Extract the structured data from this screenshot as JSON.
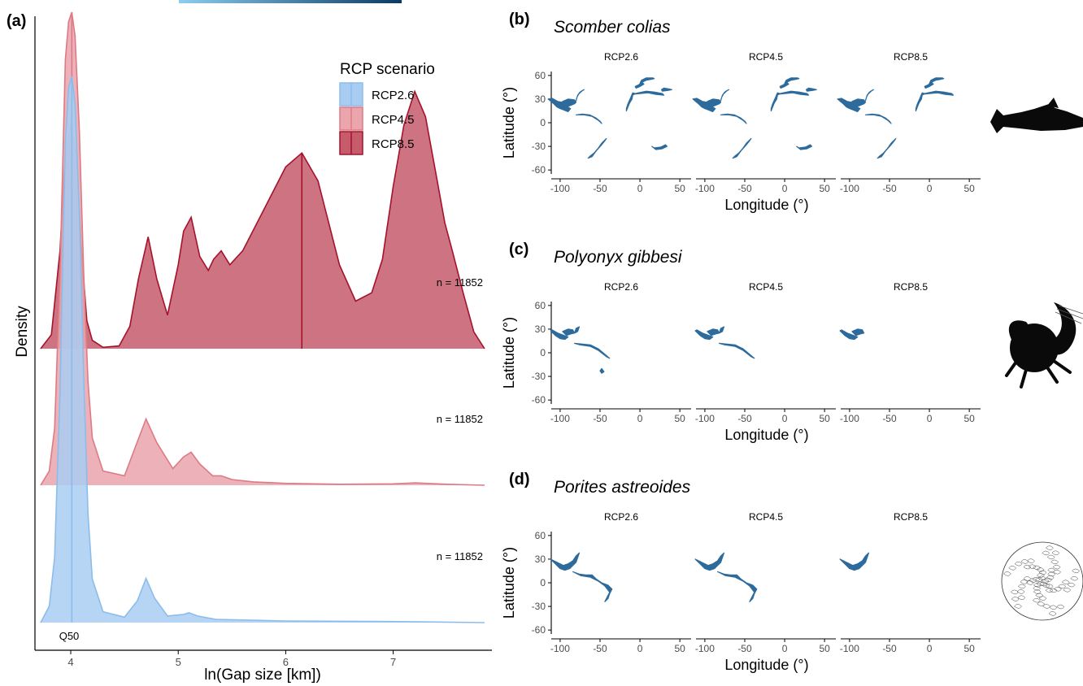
{
  "chart_data": [
    {
      "panel": "(a)",
      "type": "area",
      "xlabel": "ln(Gap size [km])",
      "ylabel": "Density",
      "xlim": [
        3.72,
        7.85
      ],
      "x_ticks": [
        4,
        5,
        6,
        7
      ],
      "legend": {
        "title": "RCP scenario",
        "position": "top-right",
        "entries": [
          "RCP2.6",
          "RCP4.5",
          "RCP8.5"
        ]
      },
      "quantile_label": "Q50",
      "series": [
        {
          "name": "RCP2.6",
          "color": "#a9cdf2",
          "stroke": "#8bbdea",
          "n_label": "n = 11852",
          "median": 4.01,
          "x": [
            3.72,
            3.8,
            3.85,
            3.9,
            3.95,
            3.98,
            4.01,
            4.04,
            4.08,
            4.12,
            4.16,
            4.2,
            4.3,
            4.5,
            4.62,
            4.7,
            4.78,
            4.9,
            5.05,
            5.1,
            5.18,
            5.35,
            6.0,
            7.0,
            7.85
          ],
          "density": [
            0.0,
            0.03,
            0.12,
            0.42,
            0.88,
            0.98,
            1.0,
            0.95,
            0.75,
            0.45,
            0.2,
            0.08,
            0.02,
            0.01,
            0.04,
            0.081,
            0.045,
            0.012,
            0.015,
            0.018,
            0.012,
            0.006,
            0.003,
            0.002,
            0.0
          ]
        },
        {
          "name": "RCP4.5",
          "color": "#eaa5ad",
          "stroke": "#de7a84",
          "n_label": "n = 11852",
          "median": 4.01,
          "x": [
            3.72,
            3.8,
            3.85,
            3.9,
            3.95,
            3.98,
            4.01,
            4.04,
            4.08,
            4.12,
            4.16,
            4.2,
            4.3,
            4.5,
            4.6,
            4.7,
            4.8,
            4.95,
            5.05,
            5.12,
            5.2,
            5.32,
            5.4,
            5.5,
            5.7,
            6.0,
            6.5,
            7.0,
            7.2,
            7.5,
            7.85
          ],
          "density": [
            0.0,
            0.03,
            0.12,
            0.45,
            0.9,
            0.98,
            1.0,
            0.95,
            0.75,
            0.45,
            0.22,
            0.1,
            0.03,
            0.02,
            0.08,
            0.14,
            0.09,
            0.035,
            0.06,
            0.07,
            0.045,
            0.02,
            0.02,
            0.012,
            0.007,
            0.004,
            0.002,
            0.003,
            0.005,
            0.002,
            0.0
          ]
        },
        {
          "name": "RCP8.5",
          "color": "#c55b6b",
          "stroke": "#a5122c",
          "n_label": "n = 11852",
          "median": 6.15,
          "x": [
            3.72,
            3.82,
            3.9,
            3.95,
            4.0,
            4.05,
            4.1,
            4.15,
            4.2,
            4.3,
            4.45,
            4.55,
            4.63,
            4.72,
            4.8,
            4.9,
            5.0,
            5.05,
            5.12,
            5.2,
            5.28,
            5.33,
            5.4,
            5.48,
            5.6,
            5.8,
            6.0,
            6.15,
            6.3,
            6.5,
            6.65,
            6.8,
            6.9,
            7.0,
            7.1,
            7.2,
            7.3,
            7.4,
            7.48,
            7.55,
            7.65,
            7.75,
            7.85
          ],
          "density": [
            0.0,
            0.05,
            0.35,
            0.7,
            0.8,
            0.7,
            0.35,
            0.1,
            0.03,
            0.005,
            0.01,
            0.08,
            0.25,
            0.4,
            0.25,
            0.12,
            0.3,
            0.42,
            0.47,
            0.33,
            0.28,
            0.32,
            0.35,
            0.3,
            0.35,
            0.5,
            0.65,
            0.7,
            0.6,
            0.3,
            0.17,
            0.2,
            0.32,
            0.58,
            0.8,
            0.92,
            0.83,
            0.62,
            0.45,
            0.35,
            0.2,
            0.06,
            0.0
          ]
        }
      ]
    },
    {
      "panel": "(b)",
      "type": "map",
      "species": "Scomber colias",
      "facets": [
        "RCP2.6",
        "RCP4.5",
        "RCP8.5"
      ],
      "xlabel": "Longitude (°)",
      "ylabel": "Latitude (°)",
      "x_ticks": [
        -100,
        -50,
        0,
        50
      ],
      "y_ticks": [
        60,
        30,
        0,
        -30,
        -60
      ],
      "silhouette": "fish-silhouette"
    },
    {
      "panel": "(c)",
      "type": "map",
      "species": "Polyonyx gibbesi",
      "facets": [
        "RCP2.6",
        "RCP4.5",
        "RCP8.5"
      ],
      "xlabel": "Longitude (°)",
      "ylabel": "Latitude (°)",
      "x_ticks": [
        -100,
        -50,
        0,
        50
      ],
      "y_ticks": [
        60,
        30,
        0,
        -30,
        -60
      ],
      "silhouette": "crab-silhouette"
    },
    {
      "panel": "(d)",
      "type": "map",
      "species": "Porites astreoides",
      "facets": [
        "RCP2.6",
        "RCP4.5",
        "RCP8.5"
      ],
      "xlabel": "Longitude (°)",
      "ylabel": "Latitude (°)",
      "x_ticks": [
        -100,
        -50,
        0,
        50
      ],
      "y_ticks": [
        60,
        30,
        0,
        -30,
        -60
      ],
      "silhouette": "coral-drawing"
    }
  ],
  "colors": {
    "map_fill": "#2d6b9c",
    "gradient_bar": [
      "#7fc4ee",
      "#0d3c66"
    ]
  }
}
